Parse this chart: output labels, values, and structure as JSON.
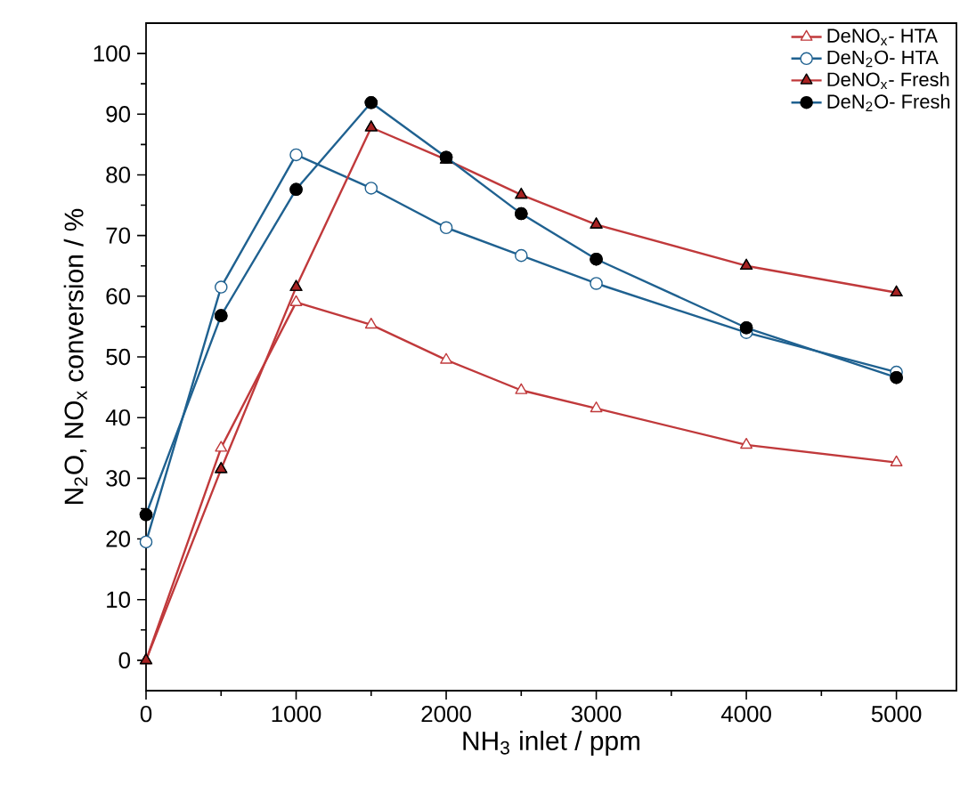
{
  "chart_data": {
    "type": "line",
    "xlabel": "NH$_{3}$ inlet / ppm",
    "ylabel": "N$_{2}$O, NO$_{x}$ conversion / %",
    "x": [
      0,
      500,
      1000,
      1500,
      2000,
      2500,
      3000,
      4000,
      5000
    ],
    "xlim": [
      0,
      5400
    ],
    "xticks": [
      0,
      1000,
      2000,
      3000,
      4000,
      5000
    ],
    "ylim": [
      -5,
      105
    ],
    "yticks": [
      0,
      10,
      20,
      30,
      40,
      50,
      60,
      70,
      80,
      90,
      100
    ],
    "legend": "top right",
    "grid": false,
    "line_style": "solid",
    "series": [
      {
        "name": "DeNO$_{x}$- HTA",
        "color": "#c0393b",
        "marker": "triangle",
        "values": [
          0,
          35,
          59,
          55.3,
          49.5,
          44.5,
          41.5,
          35.5,
          32.6
        ]
      },
      {
        "name": "DeN$_{2}$O- HTA",
        "color": "#1f6190",
        "marker": "circle",
        "values": [
          19.5,
          61.5,
          83.3,
          77.8,
          71.3,
          66.7,
          62.1,
          54,
          47.5
        ]
      },
      {
        "name": "DeNO$_{x}$- Fresh",
        "color": "#c0393b",
        "marker": "triangle",
        "colors": [
          "#a82222",
          "#a82222",
          "#a82222",
          "#a82222",
          "#a82222",
          "#a82222",
          "#a82222",
          "#a82222",
          "#a82222"
        ],
        "values": [
          0,
          31.5,
          61.5,
          87.8,
          82.5,
          76.7,
          71.8,
          65,
          60.6
        ]
      },
      {
        "name": "DeN$_{2}$O- Fresh",
        "color": "#1f6190",
        "marker": "circle",
        "colors": [
          "#000000",
          "#000000",
          "#000000",
          "#000000",
          "#000000",
          "#000000",
          "#000000",
          "#000000",
          "#000000"
        ],
        "values": [
          24,
          56.8,
          77.6,
          91.9,
          82.9,
          73.6,
          66.1,
          54.8,
          46.6
        ]
      }
    ]
  }
}
